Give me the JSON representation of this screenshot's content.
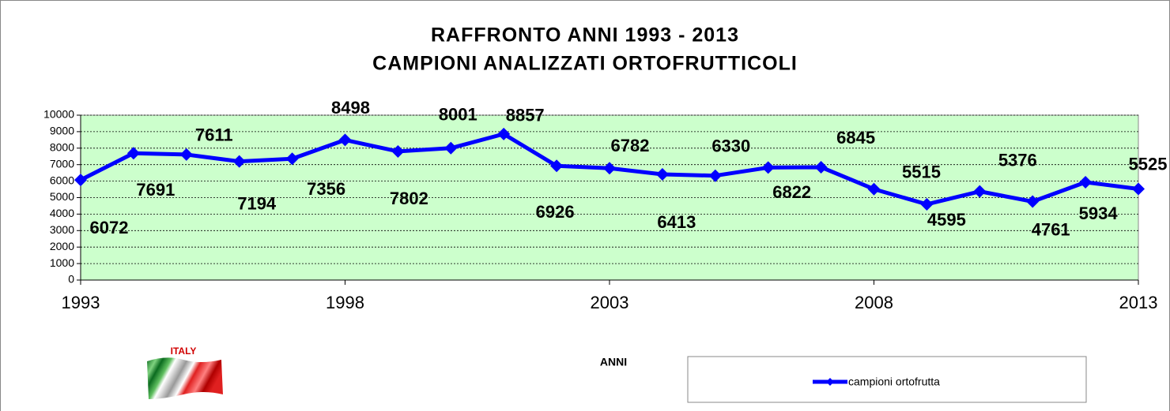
{
  "chart_data": {
    "type": "line",
    "title": "RAFFRONTO ANNI 1993 - 2013",
    "subtitle": "CAMPIONI ANALIZZATI ORTOFRUTTICOLI",
    "x_label": "ANNI",
    "flag_label": "ITALY",
    "x": [
      1993,
      1994,
      1995,
      1996,
      1997,
      1998,
      1999,
      2000,
      2001,
      2002,
      2003,
      2004,
      2005,
      2006,
      2007,
      2008,
      2009,
      2010,
      2011,
      2012,
      2013
    ],
    "series": [
      {
        "name": "campioni ortofrutta",
        "color": "#0000ff",
        "values": [
          6072,
          7691,
          7611,
          7194,
          7356,
          8498,
          7802,
          8001,
          8857,
          6926,
          6782,
          6413,
          6330,
          6822,
          6845,
          5515,
          4595,
          5376,
          4761,
          5934,
          5525
        ]
      }
    ],
    "xlim": [
      1993,
      2013
    ],
    "xticks": [
      1993,
      1998,
      2003,
      2008,
      2013
    ],
    "ylim": [
      0,
      10000
    ],
    "yticks": [
      0,
      1000,
      2000,
      3000,
      4000,
      5000,
      6000,
      7000,
      8000,
      9000,
      10000
    ],
    "grid": true,
    "plot_background": "#ccffcc",
    "legend": "bottom right"
  }
}
